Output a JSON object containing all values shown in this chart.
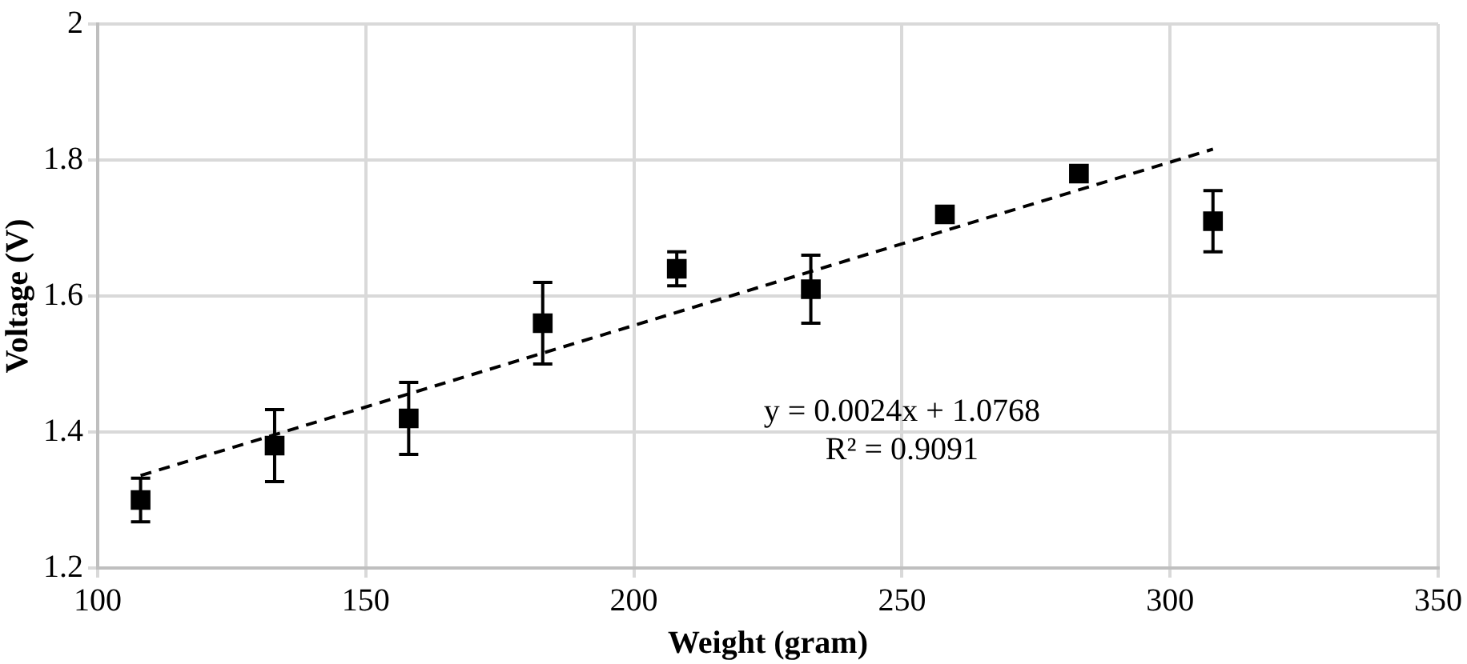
{
  "chart_data": {
    "type": "scatter",
    "xlabel": "Weight (gram)",
    "ylabel": "Voltage (V)",
    "xlim": [
      100,
      350
    ],
    "xticks": [
      100,
      150,
      200,
      250,
      300,
      350
    ],
    "ylim": [
      1.2,
      2
    ],
    "yticks": [
      1.2,
      1.4,
      1.6,
      1.8,
      2
    ],
    "grid": true,
    "legend": false,
    "series": [
      {
        "color": "#000000",
        "marker": "square",
        "x": [
          108,
          133,
          158,
          183,
          208,
          233,
          258,
          283,
          308
        ],
        "values": [
          1.3,
          1.38,
          1.42,
          1.56,
          1.64,
          1.61,
          1.72,
          1.78,
          1.71
        ],
        "errors": [
          0.032,
          0.053,
          0.053,
          0.06,
          0.025,
          0.05,
          null,
          null,
          0.045
        ]
      },
      {
        "type": "line",
        "color": "#000000",
        "marker": "none",
        "line_style": "dashed",
        "x": [
          108,
          308
        ],
        "values": [
          1.336,
          1.816
        ]
      }
    ],
    "annotations": [
      "y = 0.0024x + 1.0768",
      "R² = 0.9091"
    ]
  }
}
